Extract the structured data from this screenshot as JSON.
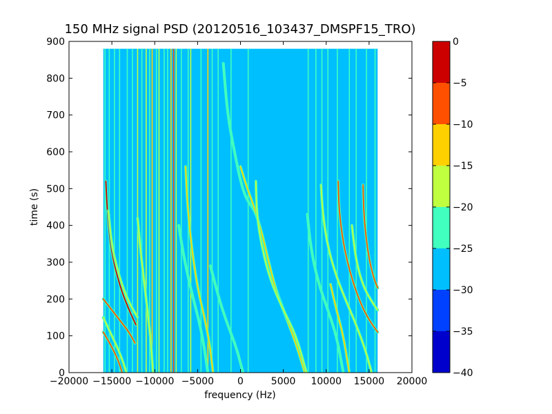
{
  "chart_data": {
    "type": "heatmap",
    "title": "150 MHz signal PSD (20120516_103437_DMSPF15_TRO)",
    "xlabel": "frequency (Hz)",
    "ylabel": "time (s)",
    "xlim": [
      -20000,
      20000
    ],
    "ylim": [
      0,
      900
    ],
    "x_ticks": [
      -20000,
      -15000,
      -10000,
      -5000,
      0,
      5000,
      10000,
      15000,
      20000
    ],
    "y_ticks": [
      0,
      100,
      200,
      300,
      400,
      500,
      600,
      700,
      800,
      900
    ],
    "data_extent": {
      "x": [
        -16000,
        16000
      ],
      "y": [
        0,
        880
      ]
    },
    "background_level": -27.5,
    "colorbar": {
      "range": [
        -40,
        0
      ],
      "ticks": [
        0,
        -5,
        -10,
        -15,
        -20,
        -25,
        -30,
        -35,
        -40
      ],
      "bands": [
        {
          "from": -40,
          "to": -35,
          "color": "#0000cd"
        },
        {
          "from": -35,
          "to": -30,
          "color": "#0040ff"
        },
        {
          "from": -30,
          "to": -25,
          "color": "#00bfff"
        },
        {
          "from": -25,
          "to": -20,
          "color": "#40ffbf"
        },
        {
          "from": -20,
          "to": -15,
          "color": "#bfff40"
        },
        {
          "from": -15,
          "to": -10,
          "color": "#ffd000"
        },
        {
          "from": -10,
          "to": -5,
          "color": "#ff5000"
        },
        {
          "from": -5,
          "to": 0,
          "color": "#cd0000"
        }
      ]
    },
    "vertical_lines": [
      {
        "x": -15800,
        "level": -22
      },
      {
        "x": -15300,
        "level": -22
      },
      {
        "x": -14700,
        "level": -22
      },
      {
        "x": -14100,
        "level": -22
      },
      {
        "x": -13200,
        "level": -22
      },
      {
        "x": -12600,
        "level": -22
      },
      {
        "x": -12000,
        "level": -17
      },
      {
        "x": -11500,
        "level": -22
      },
      {
        "x": -11000,
        "level": -17
      },
      {
        "x": -10600,
        "level": -22
      },
      {
        "x": -10300,
        "level": -12
      },
      {
        "x": -9800,
        "level": -22
      },
      {
        "x": -9500,
        "level": -17
      },
      {
        "x": -8900,
        "level": -22
      },
      {
        "x": -8500,
        "level": -22
      },
      {
        "x": -8100,
        "level": -12
      },
      {
        "x": -7800,
        "level": -7
      },
      {
        "x": -7500,
        "level": -17
      },
      {
        "x": -6900,
        "level": -22
      },
      {
        "x": -6100,
        "level": -22
      },
      {
        "x": -5800,
        "level": -17
      },
      {
        "x": -4600,
        "level": -22
      },
      {
        "x": -3800,
        "level": -12
      },
      {
        "x": -3300,
        "level": -22
      },
      {
        "x": -2600,
        "level": -22
      },
      {
        "x": -1100,
        "level": -22
      },
      {
        "x": 900,
        "level": -22
      },
      {
        "x": 7900,
        "level": -22
      },
      {
        "x": 8800,
        "level": -22
      },
      {
        "x": 9500,
        "level": -22
      },
      {
        "x": 10200,
        "level": -22
      },
      {
        "x": 11300,
        "level": -22
      },
      {
        "x": 12700,
        "level": -22
      },
      {
        "x": 13500,
        "level": -22
      },
      {
        "x": 14700,
        "level": -22
      },
      {
        "x": 15700,
        "level": -22
      }
    ],
    "traces": [
      {
        "level": -3,
        "points": [
          [
            -15700,
            520
          ],
          [
            -15500,
            420
          ],
          [
            -15000,
            320
          ],
          [
            -14000,
            230
          ],
          [
            -13000,
            170
          ],
          [
            -12200,
            130
          ]
        ]
      },
      {
        "level": -17,
        "points": [
          [
            -15400,
            440
          ],
          [
            -15000,
            340
          ],
          [
            -14000,
            250
          ],
          [
            -13000,
            190
          ],
          [
            -12000,
            150
          ]
        ]
      },
      {
        "level": -5,
        "points": [
          [
            -16000,
            200
          ],
          [
            -15000,
            170
          ],
          [
            -14000,
            140
          ],
          [
            -13000,
            110
          ],
          [
            -12300,
            80
          ]
        ]
      },
      {
        "level": -8,
        "points": [
          [
            -16000,
            110
          ],
          [
            -15000,
            70
          ],
          [
            -14200,
            30
          ],
          [
            -13800,
            0
          ]
        ]
      },
      {
        "level": -17,
        "points": [
          [
            -16000,
            150
          ],
          [
            -15000,
            100
          ],
          [
            -14000,
            50
          ],
          [
            -13300,
            0
          ]
        ]
      },
      {
        "level": -17,
        "points": [
          [
            -12000,
            420
          ],
          [
            -11600,
            320
          ],
          [
            -11000,
            200
          ],
          [
            -10500,
            100
          ],
          [
            -10200,
            0
          ]
        ]
      },
      {
        "level": -12,
        "points": [
          [
            -6400,
            560
          ],
          [
            -6200,
            460
          ],
          [
            -5700,
            340
          ],
          [
            -5000,
            230
          ],
          [
            -4200,
            150
          ],
          [
            -3600,
            80
          ],
          [
            -3200,
            0
          ]
        ]
      },
      {
        "level": -22,
        "points": [
          [
            -7200,
            400
          ],
          [
            -6500,
            300
          ],
          [
            -5500,
            200
          ],
          [
            -4500,
            110
          ],
          [
            -3800,
            0
          ]
        ]
      },
      {
        "level": -22,
        "points": [
          [
            -3500,
            290
          ],
          [
            -2500,
            200
          ],
          [
            -1500,
            130
          ],
          [
            -500,
            70
          ],
          [
            300,
            0
          ]
        ]
      },
      {
        "level": -22,
        "points": [
          [
            -2000,
            840
          ],
          [
            -1500,
            700
          ],
          [
            -700,
            600
          ],
          [
            0,
            520
          ],
          [
            700,
            470
          ],
          [
            1700,
            440
          ],
          [
            2500,
            380
          ],
          [
            3300,
            300
          ],
          [
            4200,
            220
          ],
          [
            5400,
            150
          ],
          [
            6500,
            80
          ],
          [
            7600,
            0
          ]
        ]
      },
      {
        "level": -12,
        "points": [
          [
            0,
            560
          ],
          [
            800,
            500
          ],
          [
            1600,
            450
          ],
          [
            2500,
            380
          ],
          [
            3400,
            290
          ],
          [
            4300,
            210
          ],
          [
            5500,
            140
          ],
          [
            6600,
            70
          ],
          [
            7500,
            0
          ]
        ]
      },
      {
        "level": -17,
        "points": [
          [
            1800,
            520
          ],
          [
            1900,
            430
          ],
          [
            2500,
            340
          ],
          [
            3500,
            250
          ],
          [
            5000,
            170
          ],
          [
            6500,
            100
          ],
          [
            7700,
            0
          ]
        ]
      },
      {
        "level": -17,
        "points": [
          [
            9400,
            510
          ],
          [
            9600,
            430
          ],
          [
            10200,
            340
          ],
          [
            11200,
            260
          ],
          [
            12400,
            190
          ],
          [
            13500,
            130
          ],
          [
            14600,
            60
          ],
          [
            15300,
            0
          ]
        ]
      },
      {
        "level": -22,
        "points": [
          [
            7800,
            430
          ],
          [
            8200,
            340
          ],
          [
            9000,
            250
          ],
          [
            10200,
            170
          ],
          [
            11200,
            100
          ],
          [
            12000,
            0
          ]
        ]
      },
      {
        "level": -8,
        "points": [
          [
            11400,
            520
          ],
          [
            11500,
            440
          ],
          [
            12000,
            350
          ],
          [
            12800,
            270
          ],
          [
            13800,
            200
          ],
          [
            14800,
            150
          ],
          [
            16000,
            110
          ]
        ]
      },
      {
        "level": -5,
        "points": [
          [
            14300,
            510
          ],
          [
            14400,
            420
          ],
          [
            14900,
            320
          ],
          [
            15500,
            260
          ],
          [
            16000,
            230
          ]
        ]
      },
      {
        "level": -17,
        "points": [
          [
            13000,
            400
          ],
          [
            13500,
            300
          ],
          [
            14400,
            230
          ],
          [
            15400,
            190
          ],
          [
            16000,
            170
          ]
        ]
      },
      {
        "level": -12,
        "points": [
          [
            10500,
            240
          ],
          [
            11200,
            170
          ],
          [
            12000,
            100
          ],
          [
            12700,
            0
          ]
        ]
      }
    ]
  }
}
